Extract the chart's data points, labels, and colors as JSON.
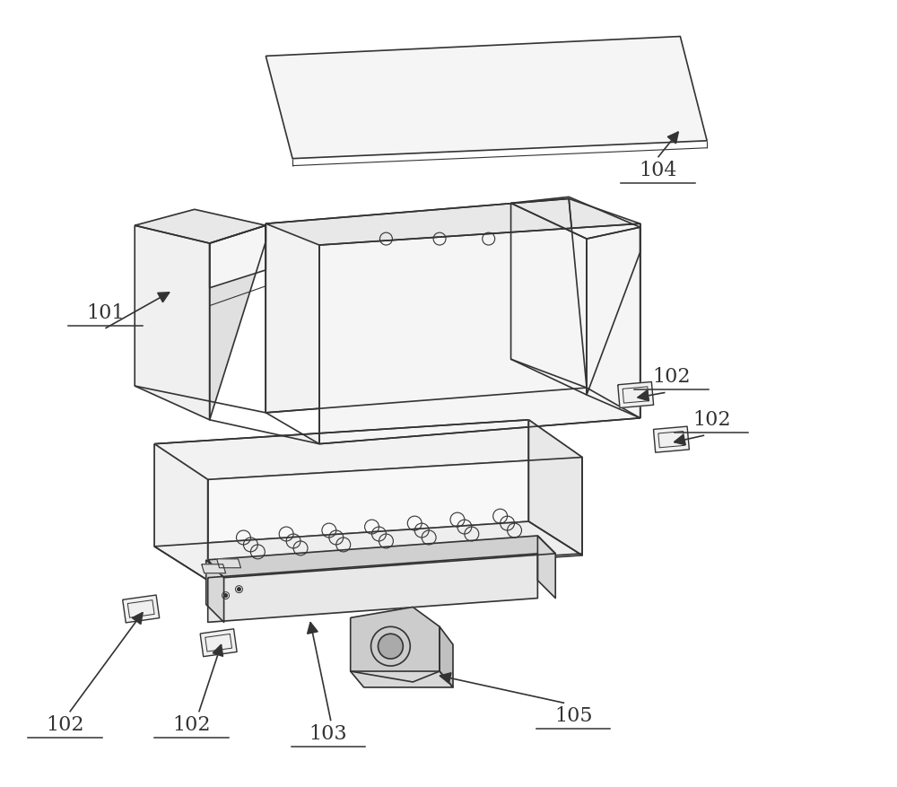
{
  "bg_color": "#ffffff",
  "line_color": "#333333",
  "lw": 1.2,
  "figsize": [
    10.0,
    8.77
  ],
  "label_fontsize": 16
}
